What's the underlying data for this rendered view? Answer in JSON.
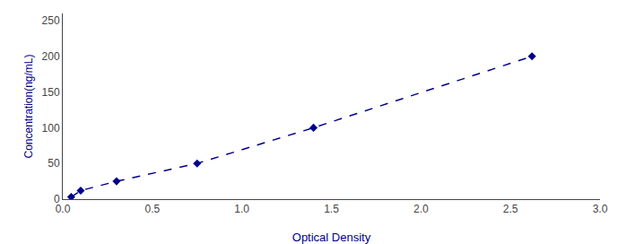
{
  "chart_data": {
    "type": "line",
    "x": [
      0.047,
      0.1,
      0.3,
      0.75,
      1.4,
      2.62
    ],
    "values": [
      3.0,
      12.0,
      25.0,
      50.0,
      100.0,
      200.0
    ],
    "color": "#00008B",
    "marker": "diamond",
    "line_style": "dashed",
    "xlabel": "Optical Density",
    "ylabel": "Concentration(ng/mL)",
    "xlim": [
      0,
      3
    ],
    "ylim": [
      0,
      260
    ],
    "xticks": [
      {
        "value": 0,
        "label": "0.0"
      },
      0.5,
      {
        "value": 1,
        "label": "1.0"
      },
      1.5,
      {
        "value": 2,
        "label": "2.0"
      },
      2.5,
      {
        "value": 3,
        "label": "3.0"
      }
    ],
    "yticks": [
      0,
      50,
      100,
      150,
      200,
      250
    ],
    "grid": false
  }
}
